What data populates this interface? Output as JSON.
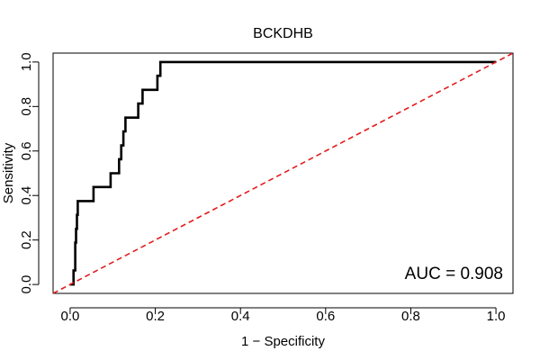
{
  "chart_data": {
    "type": "line",
    "title": "BCKDHB",
    "xlabel": "1 − Specificity",
    "ylabel": "Sensitivity",
    "xlim": [
      -0.04,
      1.04
    ],
    "ylim": [
      -0.04,
      1.04
    ],
    "xticks": [
      0.0,
      0.2,
      0.4,
      0.6,
      0.8,
      1.0
    ],
    "xtick_labels": [
      "0.0",
      "0.2",
      "0.4",
      "0.6",
      "0.8",
      "1.0"
    ],
    "yticks": [
      0.0,
      0.2,
      0.4,
      0.6,
      0.8,
      1.0
    ],
    "ytick_labels": [
      "0.0",
      "0.2",
      "0.4",
      "0.6",
      "0.8",
      "1.0"
    ],
    "annotation": "AUC = 0.908",
    "grid": false,
    "series": [
      {
        "name": "ROC curve",
        "color": "#000000",
        "style": "solid",
        "x": [
          0.0,
          0.008,
          0.008,
          0.012,
          0.012,
          0.014,
          0.014,
          0.016,
          0.016,
          0.018,
          0.018,
          0.02,
          0.02,
          0.055,
          0.055,
          0.095,
          0.095,
          0.115,
          0.115,
          0.12,
          0.12,
          0.125,
          0.125,
          0.13,
          0.13,
          0.16,
          0.16,
          0.17,
          0.17,
          0.205,
          0.205,
          0.212,
          0.212,
          1.0
        ],
        "y": [
          0.0,
          0.0,
          0.063,
          0.063,
          0.188,
          0.188,
          0.25,
          0.25,
          0.313,
          0.313,
          0.375,
          0.375,
          0.375,
          0.375,
          0.438,
          0.438,
          0.5,
          0.5,
          0.563,
          0.563,
          0.625,
          0.625,
          0.688,
          0.688,
          0.75,
          0.75,
          0.813,
          0.813,
          0.875,
          0.875,
          0.938,
          0.938,
          1.0,
          1.0
        ]
      },
      {
        "name": "Reference",
        "color": "#e41a1c",
        "style": "dashed",
        "x": [
          -0.04,
          1.04
        ],
        "y": [
          -0.04,
          1.04
        ]
      }
    ]
  }
}
